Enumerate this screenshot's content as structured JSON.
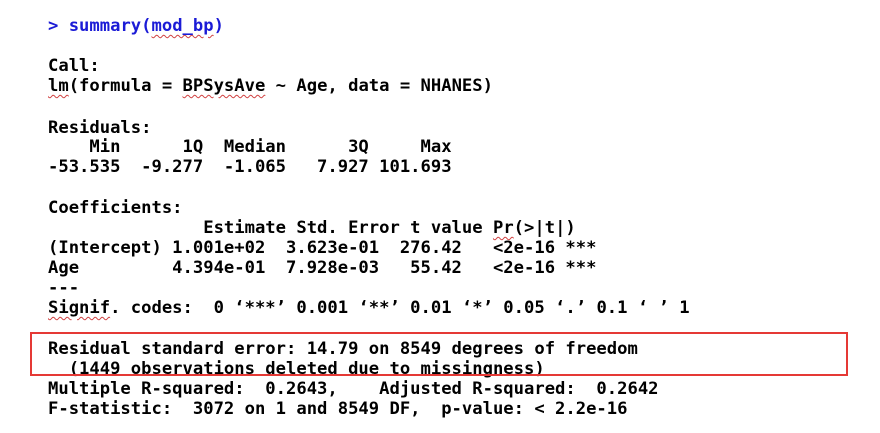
{
  "console": {
    "prompt": "> ",
    "command_fn": "summary(",
    "command_arg": "mod_bp",
    "command_close": ")",
    "call_header": "Call:",
    "call_fn": "lm",
    "call_mid": "(formula = ",
    "call_var": "BPSysAve",
    "call_rest": " ~ Age, data = NHANES)",
    "residuals_header": "Residuals:",
    "residuals_labels": "    Min      1Q  Median      3Q     Max ",
    "residuals_values": "-53.535  -9.277  -1.065   7.927 101.693 ",
    "coef_header": "Coefficients:",
    "coef_cols_a": "               Estimate Std. Error t value ",
    "coef_cols_pr": "Pr",
    "coef_cols_b": "(>|t|)",
    "coef_row1": "(Intercept) 1.001e+02  3.623e-01  276.42   <2e-16 ***",
    "coef_row2": "Age         4.394e-01  7.928e-03   55.42   <2e-16 ***",
    "separator": "---",
    "signif_label": "Signif",
    "signif_rest": ". codes:  0 ‘***’ 0.001 ‘**’ 0.01 ‘*’ 0.05 ‘.’ 0.1 ‘ ’ 1",
    "rse_line": "Residual standard error: 14.79 on 8549 degrees of freedom",
    "missing_line": "  (1449 observations deleted due to missingness)",
    "rsq_line": "Multiple R-squared:  0.2643,\tAdjusted R-squared:  0.2642 ",
    "fstat_line": "F-statistic:  3072 on 1 and 8549 DF,  p-value: < 2.2e-16"
  },
  "colors": {
    "prompt": "#1b1bd6",
    "highlight_border": "#e53935",
    "spellcheck_underline": "#d04040"
  }
}
